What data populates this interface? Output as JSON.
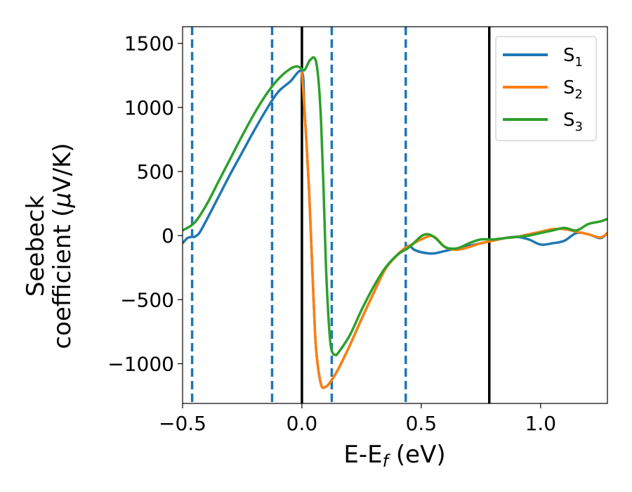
{
  "chart_data": {
    "type": "line",
    "xlabel": {
      "main": "E-E",
      "sub": "f",
      "tail": " (eV)"
    },
    "ylabel": {
      "line1": "Seebeck",
      "line2_prefix": "coefficient  (",
      "mu": "μ",
      "line2_suffix": "V/K)"
    },
    "xlim": [
      -0.5,
      1.28
    ],
    "ylim": [
      -1310,
      1630
    ],
    "xticks": [
      -0.5,
      0.0,
      0.5,
      1.0
    ],
    "xtick_labels": [
      "−0.5",
      "0.0",
      "0.5",
      "1.0"
    ],
    "yticks": [
      -1000,
      -500,
      0,
      500,
      1000,
      1500
    ],
    "ytick_labels": [
      "−1000",
      "−500",
      "0",
      "500",
      "1000",
      "1500"
    ],
    "grid": false,
    "legend_position": "top-right",
    "vlines_solid": [
      0.0,
      0.785
    ],
    "vlines_dashed": [
      -0.46,
      -0.125,
      0.125,
      0.435
    ],
    "series": [
      {
        "name": "S",
        "sub": "1",
        "color": "#1f77b4",
        "x": [
          -0.5,
          -0.48,
          -0.46,
          -0.45,
          -0.43,
          -0.4,
          -0.35,
          -0.3,
          -0.25,
          -0.2,
          -0.15,
          -0.1,
          -0.05,
          0.0,
          0.01,
          0.02,
          0.03,
          0.04,
          0.05,
          0.06,
          0.08,
          0.1,
          0.12,
          0.15,
          0.2,
          0.25,
          0.3,
          0.35,
          0.4,
          0.43,
          0.45,
          0.47,
          0.5,
          0.55,
          0.6,
          0.65,
          0.7,
          0.75,
          0.8,
          0.85,
          0.9,
          0.95,
          1.0,
          1.05,
          1.1,
          1.15,
          1.2,
          1.25,
          1.28
        ],
        "y": [
          -60,
          -20,
          -10,
          -10,
          20,
          120,
          300,
          480,
          650,
          820,
          980,
          1120,
          1200,
          1280,
          1000,
          700,
          350,
          -100,
          -550,
          -900,
          -1160,
          -1180,
          -1140,
          -1050,
          -860,
          -650,
          -450,
          -260,
          -150,
          -100,
          -80,
          -110,
          -130,
          -140,
          -120,
          -100,
          -80,
          -60,
          -40,
          -20,
          -10,
          -30,
          -70,
          -60,
          -40,
          20,
          10,
          -20,
          20
        ]
      },
      {
        "name": "S",
        "sub": "2",
        "color": "#ff7f0e",
        "x": [
          0.0,
          0.01,
          0.02,
          0.03,
          0.04,
          0.05,
          0.06,
          0.08,
          0.1,
          0.12,
          0.15,
          0.2,
          0.25,
          0.3,
          0.35,
          0.4,
          0.43,
          0.45,
          0.5,
          0.55,
          0.6,
          0.65,
          0.7,
          0.75,
          0.8,
          0.85,
          0.9,
          0.95,
          1.0,
          1.05,
          1.1,
          1.15,
          1.2,
          1.25,
          1.28
        ],
        "y": [
          1280,
          1000,
          700,
          350,
          -100,
          -550,
          -900,
          -1160,
          -1180,
          -1140,
          -1050,
          -860,
          -650,
          -450,
          -260,
          -150,
          -100,
          -80,
          -30,
          -5,
          -90,
          -110,
          -90,
          -60,
          -40,
          -20,
          -10,
          10,
          30,
          50,
          50,
          30,
          10,
          -15,
          20
        ]
      },
      {
        "name": "S",
        "sub": "3",
        "color": "#2ca02c",
        "x": [
          -0.5,
          -0.45,
          -0.4,
          -0.35,
          -0.3,
          -0.25,
          -0.2,
          -0.15,
          -0.1,
          -0.05,
          -0.02,
          0.0,
          0.01,
          0.02,
          0.03,
          0.04,
          0.05,
          0.06,
          0.07,
          0.08,
          0.09,
          0.1,
          0.11,
          0.12,
          0.13,
          0.14,
          0.15,
          0.2,
          0.25,
          0.3,
          0.35,
          0.4,
          0.45,
          0.5,
          0.53,
          0.56,
          0.6,
          0.65,
          0.7,
          0.75,
          0.8,
          0.85,
          0.9,
          0.95,
          1.0,
          1.05,
          1.1,
          1.15,
          1.2,
          1.25,
          1.28
        ],
        "y": [
          40,
          100,
          240,
          420,
          600,
          780,
          950,
          1100,
          1220,
          1300,
          1320,
          1300,
          1290,
          1320,
          1360,
          1380,
          1390,
          1350,
          1200,
          900,
          400,
          -200,
          -600,
          -850,
          -920,
          -930,
          -920,
          -780,
          -580,
          -400,
          -250,
          -150,
          -90,
          -5,
          10,
          -20,
          -90,
          -100,
          -60,
          -30,
          -30,
          -20,
          -10,
          0,
          20,
          40,
          60,
          40,
          90,
          110,
          130
        ]
      }
    ]
  }
}
